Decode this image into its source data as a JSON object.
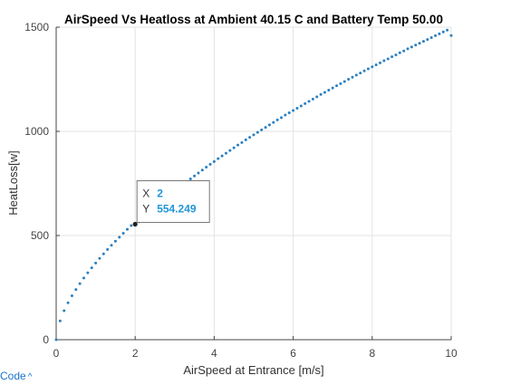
{
  "chart_data": {
    "type": "scatter",
    "title": "AirSpeed Vs Heatloss at Ambient 40.15 C and Battery Temp 50.00",
    "xlabel": "AirSpeed at Entrance [m/s]",
    "ylabel": "HeatLoss[w]",
    "xlim": [
      0,
      10
    ],
    "ylim": [
      0,
      1500
    ],
    "xticks": [
      "0",
      "2",
      "4",
      "6",
      "8",
      "10"
    ],
    "yticks": [
      "0",
      "500",
      "1000",
      "1500"
    ],
    "grid": true,
    "marker_color": "#2a7fc0",
    "series": [
      {
        "x": [
          0,
          0.1,
          0.2,
          0.3,
          0.4,
          0.5,
          0.6,
          0.7,
          0.8,
          0.9,
          1.0,
          1.1,
          1.2,
          1.3,
          1.4,
          1.5,
          1.6,
          1.7,
          1.8,
          1.9,
          2.0,
          2.1,
          2.2,
          2.3,
          2.4,
          2.5,
          2.6,
          2.7,
          2.8,
          2.9,
          3.0,
          3.1,
          3.2,
          3.3,
          3.4,
          3.5,
          3.6,
          3.7,
          3.8,
          3.9,
          4.0,
          4.1,
          4.2,
          4.3,
          4.4,
          4.5,
          4.6,
          4.7,
          4.8,
          4.9,
          5.0,
          5.1,
          5.2,
          5.3,
          5.4,
          5.5,
          5.6,
          5.7,
          5.8,
          5.9,
          6.0,
          6.1,
          6.2,
          6.3,
          6.4,
          6.5,
          6.6,
          6.7,
          6.8,
          6.9,
          7.0,
          7.1,
          7.2,
          7.3,
          7.4,
          7.5,
          7.6,
          7.7,
          7.8,
          7.9,
          8.0,
          8.1,
          8.2,
          8.3,
          8.4,
          8.5,
          8.6,
          8.7,
          8.8,
          8.9,
          9.0,
          9.1,
          9.2,
          9.3,
          9.4,
          9.5,
          9.6,
          9.7,
          9.8,
          9.9,
          10.0
        ],
        "y": [
          0,
          90,
          139,
          177,
          211,
          241,
          269,
          296,
          321,
          345,
          368,
          390,
          412,
          433,
          453,
          473,
          492,
          511,
          530,
          548,
          554,
          566,
          583,
          600,
          617,
          634,
          650,
          666,
          682,
          697,
          713,
          728,
          743,
          757,
          772,
          786,
          800,
          814,
          828,
          842,
          855,
          869,
          882,
          895,
          908,
          921,
          934,
          946,
          959,
          971,
          983,
          995,
          1007,
          1019,
          1031,
          1043,
          1055,
          1066,
          1078,
          1089,
          1100,
          1111,
          1122,
          1133,
          1144,
          1155,
          1166,
          1177,
          1187,
          1198,
          1208,
          1219,
          1229,
          1239,
          1250,
          1260,
          1270,
          1280,
          1290,
          1300,
          1310,
          1319,
          1329,
          1339,
          1348,
          1358,
          1367,
          1377,
          1386,
          1396,
          1405,
          1414,
          1423,
          1432,
          1441,
          1450,
          1459,
          1468,
          1477,
          1486,
          1460
        ]
      }
    ],
    "datatip": {
      "x_label": "X",
      "x_value": "2",
      "y_label": "Y",
      "y_value": "554.249",
      "x": 2,
      "y": 554.249
    }
  },
  "footer": {
    "code_link_label": "Code",
    "code_link_icon": "chevron-up-icon"
  }
}
